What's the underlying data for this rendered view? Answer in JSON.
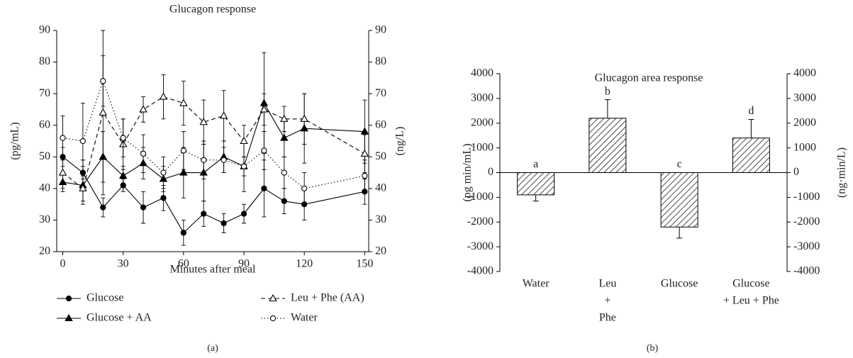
{
  "chart_data": [
    {
      "type": "line",
      "title": "Glucagon response",
      "xlabel": "Minutes after meal",
      "ylabel": "(pg/mL)",
      "y2label": "(ng/L)",
      "caption": "(a)",
      "x": [
        0,
        10,
        20,
        30,
        40,
        50,
        60,
        70,
        80,
        90,
        100,
        110,
        120,
        150
      ],
      "xlim": [
        -3,
        152
      ],
      "xticks": [
        0,
        30,
        60,
        90,
        120,
        150
      ],
      "ylim": [
        20,
        90
      ],
      "yticks": [
        20,
        30,
        40,
        50,
        60,
        70,
        80,
        90
      ],
      "y2lim": [
        20,
        90
      ],
      "y2ticks": [
        20,
        30,
        40,
        50,
        60,
        70,
        80,
        90
      ],
      "series": [
        {
          "name": "Glucose",
          "color": "#000000",
          "marker": "circle",
          "filled": true,
          "dash": "solid",
          "values": [
            50,
            45,
            34,
            41,
            34,
            37,
            26,
            32,
            29,
            32,
            40,
            36,
            35,
            39
          ],
          "errors": [
            3,
            4,
            3,
            2,
            5,
            4,
            4,
            4,
            3,
            3,
            9,
            4,
            5,
            4
          ]
        },
        {
          "name": "Glucose + AA",
          "color": "#000000",
          "marker": "triangle",
          "filled": true,
          "dash": "solid",
          "values": [
            42,
            41,
            50,
            44,
            48,
            43,
            45,
            45,
            50,
            47,
            67,
            56,
            59,
            58
          ],
          "errors": [
            3,
            6,
            8,
            3,
            5,
            4,
            8,
            9,
            5,
            8,
            16,
            6,
            11,
            10
          ]
        },
        {
          "name": "Leu + Phe (AA)",
          "color": "#000000",
          "marker": "triangle",
          "filled": false,
          "dash": "dashed",
          "values": [
            45,
            40,
            64,
            54,
            65,
            69,
            67,
            61,
            63,
            55,
            65,
            62,
            62,
            51
          ],
          "errors": [
            5,
            4,
            26,
            8,
            4,
            7,
            7,
            7,
            8,
            5,
            5,
            4,
            8,
            6
          ]
        },
        {
          "name": "Water",
          "color": "#000000",
          "marker": "circle",
          "filled": false,
          "dash": "dotted",
          "values": [
            56,
            55,
            74,
            56,
            51,
            45,
            52,
            49,
            49,
            47,
            52,
            45,
            40,
            44
          ],
          "errors": [
            7,
            12,
            8,
            6,
            6,
            5,
            6,
            6,
            4,
            3,
            6,
            5,
            5,
            5
          ]
        }
      ]
    },
    {
      "type": "bar",
      "title": "Glucagon area response",
      "ylabel": "(pg min/mL)",
      "y2label": "(ng·min/L)",
      "caption": "(b)",
      "categories": [
        [
          "Water"
        ],
        [
          "Leu",
          "+",
          "Phe"
        ],
        [
          "Glucose"
        ],
        [
          "Glucose",
          "+ Leu + Phe"
        ]
      ],
      "values": [
        -900,
        2200,
        -2200,
        1400
      ],
      "errors": [
        250,
        750,
        450,
        750
      ],
      "annotations": [
        "a",
        "b",
        "c",
        "d"
      ],
      "color": "#000000",
      "hatch": true,
      "ylim": [
        -4000,
        4000
      ],
      "yticks": [
        -4000,
        -3000,
        -2000,
        -1000,
        0,
        1000,
        2000,
        3000,
        4000
      ],
      "y2lim": [
        -4000,
        4000
      ],
      "y2ticks": [
        -4000,
        -3000,
        -2000,
        -1000,
        0,
        1000,
        2000,
        3000,
        4000
      ]
    }
  ]
}
